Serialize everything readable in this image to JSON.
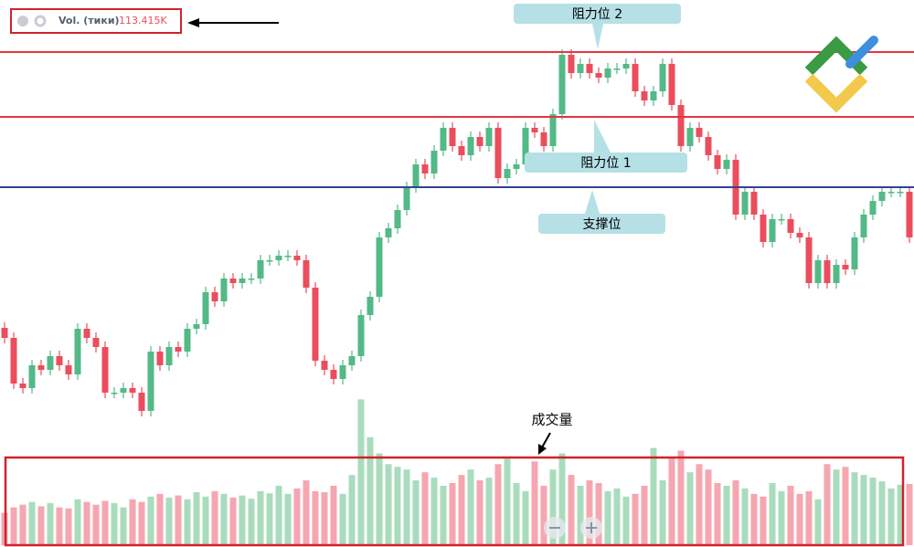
{
  "chart_data": {
    "type": "candlestick",
    "legend": {
      "name": "Vol. (тики)",
      "value": 113.415,
      "value_label": "113.415K"
    },
    "annotation": "成交量",
    "ylim": [
      0,
      599
    ],
    "colors": {
      "up": "#53b987",
      "down": "#eb4d5c",
      "volume_up": "#a9dcbc",
      "volume_down": "#f6a6b0"
    },
    "open": [
      240,
      229,
      179,
      174,
      199,
      194,
      209,
      199,
      189,
      239,
      229,
      219,
      169,
      169,
      174,
      169,
      149,
      214,
      199,
      219,
      214,
      239,
      244,
      279,
      269,
      294,
      289,
      294,
      294,
      314,
      314,
      319,
      319,
      314,
      284,
      204,
      194,
      184,
      199,
      209,
      254,
      274,
      339,
      349,
      369,
      394,
      419,
      409,
      434,
      459,
      439,
      429,
      449,
      439,
      459,
      404,
      414,
      419,
      459,
      454,
      439,
      474,
      539,
      519,
      529,
      519,
      514,
      524,
      524,
      529,
      499,
      489,
      499,
      529,
      484,
      439,
      459,
      449,
      429,
      414,
      424,
      364,
      389,
      364,
      334,
      359,
      359,
      344,
      339,
      289,
      314,
      289,
      309,
      304,
      339,
      364,
      379,
      389,
      389,
      389
    ],
    "high": [
      246,
      235,
      185,
      205,
      205,
      215,
      215,
      205,
      245,
      245,
      235,
      225,
      175,
      180,
      180,
      175,
      220,
      220,
      225,
      225,
      245,
      250,
      285,
      285,
      300,
      300,
      300,
      300,
      320,
      320,
      325,
      325,
      325,
      320,
      290,
      210,
      200,
      205,
      215,
      260,
      280,
      345,
      355,
      375,
      400,
      425,
      425,
      440,
      465,
      465,
      445,
      455,
      455,
      465,
      465,
      420,
      425,
      465,
      465,
      460,
      480,
      545,
      545,
      535,
      535,
      525,
      530,
      530,
      535,
      535,
      505,
      505,
      535,
      535,
      490,
      465,
      465,
      455,
      435,
      430,
      430,
      395,
      395,
      370,
      365,
      365,
      365,
      350,
      345,
      320,
      320,
      315,
      315,
      345,
      370,
      385,
      395,
      395,
      395,
      395
    ],
    "low": [
      223,
      173,
      168,
      168,
      188,
      188,
      193,
      183,
      183,
      223,
      213,
      163,
      163,
      163,
      163,
      143,
      143,
      193,
      193,
      208,
      208,
      233,
      238,
      263,
      263,
      283,
      283,
      288,
      288,
      308,
      308,
      313,
      308,
      278,
      198,
      188,
      178,
      178,
      193,
      203,
      248,
      268,
      333,
      343,
      363,
      388,
      403,
      403,
      428,
      433,
      423,
      423,
      433,
      433,
      398,
      398,
      408,
      413,
      448,
      433,
      433,
      468,
      513,
      513,
      513,
      508,
      508,
      518,
      518,
      493,
      483,
      483,
      493,
      478,
      433,
      433,
      443,
      423,
      408,
      408,
      358,
      358,
      358,
      328,
      328,
      353,
      338,
      333,
      283,
      283,
      283,
      283,
      298,
      298,
      333,
      358,
      373,
      383,
      383,
      333
    ],
    "close": [
      229,
      179,
      174,
      199,
      194,
      209,
      199,
      189,
      239,
      229,
      219,
      169,
      169,
      174,
      169,
      149,
      214,
      199,
      219,
      214,
      239,
      244,
      279,
      269,
      294,
      289,
      294,
      294,
      314,
      314,
      319,
      319,
      314,
      284,
      204,
      194,
      184,
      199,
      209,
      254,
      274,
      339,
      349,
      369,
      394,
      419,
      409,
      434,
      459,
      439,
      429,
      449,
      439,
      459,
      404,
      414,
      419,
      459,
      454,
      439,
      474,
      539,
      519,
      529,
      519,
      514,
      524,
      524,
      529,
      499,
      489,
      499,
      529,
      484,
      439,
      459,
      449,
      429,
      414,
      424,
      364,
      389,
      364,
      334,
      359,
      359,
      344,
      339,
      289,
      314,
      289,
      309,
      304,
      339,
      364,
      379,
      389,
      389,
      389,
      339
    ],
    "volume": {
      "y2lim": [
        0,
        350
      ],
      "values": [
        60,
        70,
        75,
        80,
        72,
        78,
        70,
        68,
        85,
        80,
        75,
        82,
        78,
        70,
        85,
        80,
        90,
        95,
        88,
        92,
        85,
        98,
        90,
        100,
        95,
        88,
        92,
        86,
        100,
        96,
        110,
        95,
        105,
        120,
        100,
        98,
        110,
        95,
        130,
        270,
        200,
        170,
        150,
        145,
        140,
        120,
        135,
        125,
        110,
        115,
        130,
        140,
        120,
        125,
        150,
        160,
        115,
        100,
        155,
        110,
        140,
        170,
        130,
        110,
        120,
        115,
        100,
        105,
        90,
        95,
        110,
        180,
        120,
        160,
        175,
        135,
        150,
        140,
        115,
        110,
        120,
        105,
        95,
        90,
        115,
        100,
        110,
        95,
        100,
        85,
        150,
        140,
        145,
        135,
        130,
        125,
        118,
        105,
        112,
        113.415
      ]
    },
    "levels": [
      {
        "label": "阻力位 2",
        "value": 542,
        "color": "#e53340"
      },
      {
        "label": "阻力位 1",
        "value": 471,
        "color": "#e53340"
      },
      {
        "label": "支撑位",
        "value": 394,
        "color": "#33438c"
      }
    ]
  }
}
